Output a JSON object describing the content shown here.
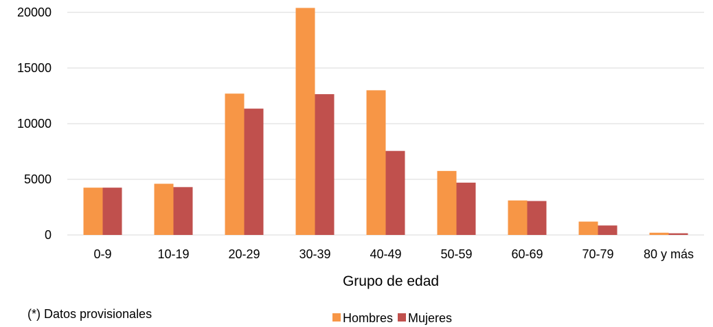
{
  "chart_data": {
    "type": "bar",
    "title": "",
    "xlabel": "Grupo de edad",
    "ylabel": "",
    "categories": [
      "0-9",
      "10-19",
      "20-29",
      "30-39",
      "40-49",
      "50-59",
      "60-69",
      "70-79",
      "80 y más"
    ],
    "series": [
      {
        "name": "Hombres",
        "color": "#F79646",
        "values": [
          4250,
          4600,
          12700,
          20400,
          13000,
          5750,
          3100,
          1200,
          200
        ]
      },
      {
        "name": "Mujeres",
        "color": "#C0504D",
        "values": [
          4250,
          4300,
          11350,
          12650,
          7550,
          4700,
          3050,
          850,
          150
        ]
      }
    ],
    "ylim": [
      0,
      20000
    ],
    "yticks": [
      0,
      5000,
      10000,
      15000,
      20000
    ],
    "grid": true,
    "legend": "bottom",
    "gridColor": "#D9D9D9"
  },
  "footnote": "(*) Datos provisionales"
}
